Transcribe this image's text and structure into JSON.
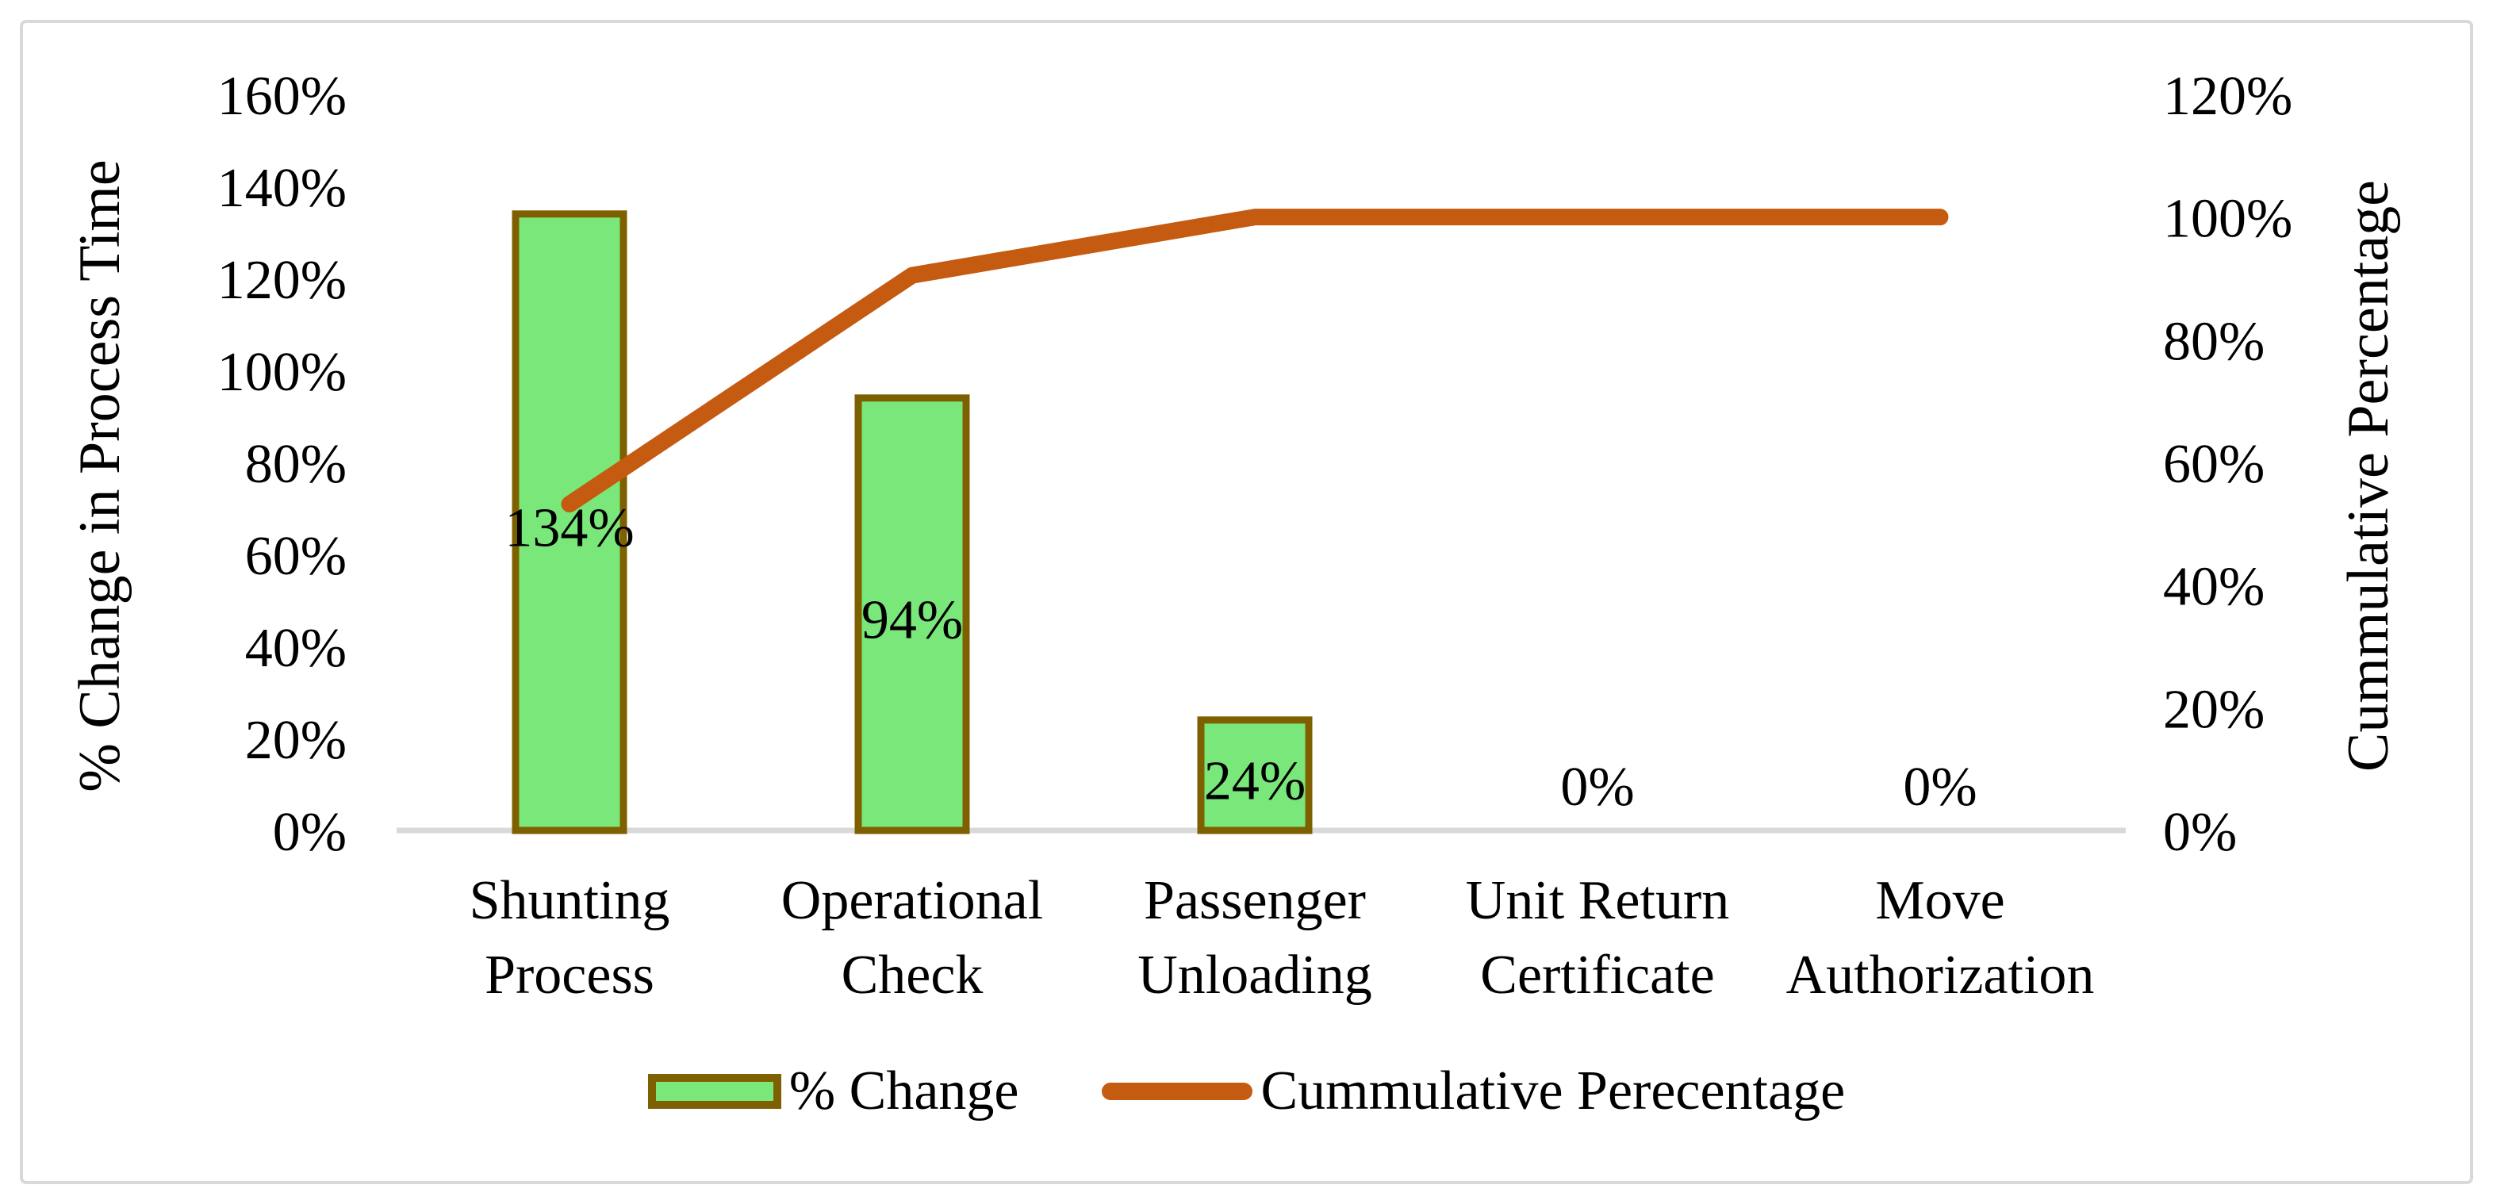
{
  "chart_data": {
    "type": "bar",
    "subtype": "pareto-combo",
    "title": "",
    "categories": [
      "Shunting Process",
      "Operational Check",
      "Passenger Unloading",
      "Unit Return Certificate",
      "Move Authorization"
    ],
    "categories_lines": [
      [
        "Shunting",
        "Process"
      ],
      [
        "Operational",
        "Check"
      ],
      [
        "Passenger",
        "Unloading"
      ],
      [
        "Unit Return",
        "Certificate"
      ],
      [
        "Move",
        "Authorization"
      ]
    ],
    "series": [
      {
        "name": "% Change",
        "type": "bar",
        "axis": "left",
        "values_pct": [
          134,
          94,
          24,
          0,
          0
        ],
        "data_labels": [
          "134%",
          "94%",
          "24%",
          "0%",
          "0%"
        ]
      },
      {
        "name": "Cummulative Perecentage",
        "type": "line",
        "axis": "right",
        "values_pct": [
          53.2,
          90.5,
          100,
          100,
          100
        ]
      }
    ],
    "left_axis": {
      "title": "% Change in Process Time",
      "tick_labels": [
        "0%",
        "20%",
        "40%",
        "60%",
        "80%",
        "100%",
        "120%",
        "140%",
        "160%"
      ],
      "min_pct": 0,
      "max_pct": 160
    },
    "right_axis": {
      "title": "Cummulative Percentage",
      "tick_labels": [
        "0%",
        "20%",
        "40%",
        "60%",
        "80%",
        "100%",
        "120%"
      ],
      "min_pct": 0,
      "max_pct": 120
    },
    "legend": [
      {
        "label": "% Change",
        "swatch": "bar"
      },
      {
        "label": "Cummulative Perecentage",
        "swatch": "line"
      }
    ],
    "colors": {
      "bar_fill": "#7AE77A",
      "bar_border": "#7F6000",
      "line": "#C55A11",
      "axis_line": "#D9D9D9",
      "frame_border": "#D9D9D9",
      "text": "#000000"
    },
    "grid": false,
    "legend_position": "bottom"
  }
}
